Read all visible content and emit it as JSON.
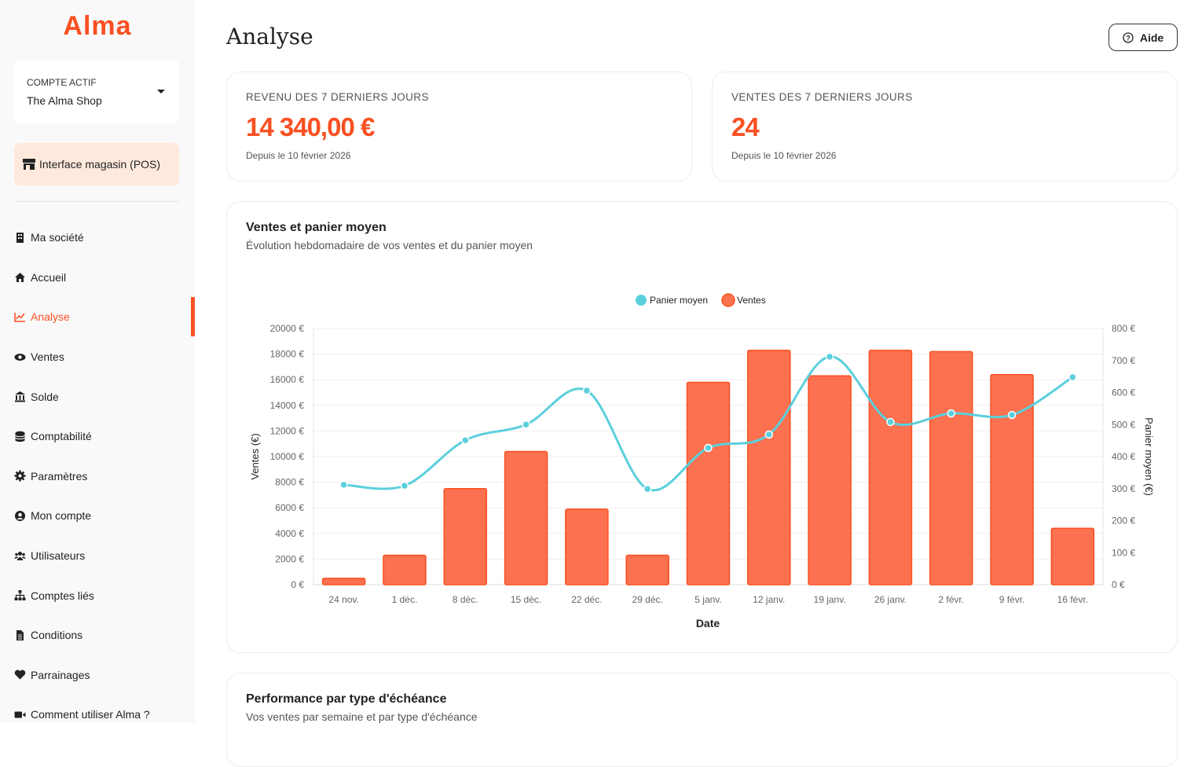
{
  "brand": "Alma",
  "account": {
    "label": "COMPTE ACTIF",
    "value": "The Alma Shop"
  },
  "pos_button": "Interface magasin (POS)",
  "nav": [
    {
      "label": "Ma société",
      "icon": "building-icon"
    },
    {
      "label": "Accueil",
      "icon": "home-icon"
    },
    {
      "label": "Analyse",
      "icon": "chart-line-icon",
      "active": true
    },
    {
      "label": "Ventes",
      "icon": "eye-icon"
    },
    {
      "label": "Solde",
      "icon": "bank-icon"
    },
    {
      "label": "Comptabilité",
      "icon": "database-icon"
    },
    {
      "label": "Paramètres",
      "icon": "gear-icon"
    },
    {
      "label": "Mon compte",
      "icon": "user-circle-icon"
    },
    {
      "label": "Utilisateurs",
      "icon": "users-icon"
    },
    {
      "label": "Comptes liés",
      "icon": "sitemap-icon"
    },
    {
      "label": "Conditions",
      "icon": "document-icon"
    },
    {
      "label": "Parrainages",
      "icon": "heart-icon"
    },
    {
      "label": "Comment utiliser Alma ?",
      "icon": "video-icon"
    }
  ],
  "page_title": "Analyse",
  "help_label": "Aide",
  "kpis": [
    {
      "title": "REVENU DES 7 DERNIERS JOURS",
      "value": "14 340,00 €",
      "sub": "Depuis le 10 février 2026"
    },
    {
      "title": "VENTES DES 7 DERNIERS JOURS",
      "value": "24",
      "sub": "Depuis le 10 février 2026"
    }
  ],
  "chart_card": {
    "title": "Ventes et panier moyen",
    "subtitle": "Évolution hebdomadaire de vos ventes et du panier moyen"
  },
  "perf_card": {
    "title": "Performance par type d'échéance",
    "subtitle": "Vos ventes par semaine et par type d'échéance"
  },
  "colors": {
    "accent": "#fa5022",
    "bar": "#fc7150",
    "line": "#5bcfdc"
  },
  "chart_data": {
    "type": "bar",
    "xlabel": "Date",
    "ylabel": "Ventes (€)",
    "y2label": "Panier moyen (€)",
    "legend": [
      "Panier moyen",
      "Ventes"
    ],
    "legend_position": "top-center",
    "categories": [
      "24 nov.",
      "1 déc.",
      "8 déc.",
      "15 déc.",
      "22 déc.",
      "29 déc.",
      "5 janv.",
      "12 janv.",
      "19 janv.",
      "26 janv.",
      "2 févr.",
      "9 févr.",
      "16 févr."
    ],
    "series": [
      {
        "name": "Ventes",
        "type": "bar",
        "axis": "left",
        "values": [
          500,
          2300,
          7500,
          10400,
          5900,
          2300,
          15800,
          18300,
          16300,
          18300,
          18200,
          16400,
          4400
        ]
      },
      {
        "name": "Panier moyen",
        "type": "line",
        "axis": "right",
        "values": [
          312,
          309,
          451,
          500,
          606,
          299,
          427,
          469,
          712,
          508,
          535,
          530,
          648
        ]
      }
    ],
    "ylim": [
      0,
      20000
    ],
    "y2lim": [
      0,
      800
    ],
    "yticks": [
      "0 €",
      "2000 €",
      "4000 €",
      "6000 €",
      "8000 €",
      "10000 €",
      "12000 €",
      "14000 €",
      "16000 €",
      "18000 €",
      "20000 €"
    ],
    "y2ticks": [
      "0 €",
      "100 €",
      "200 €",
      "300 €",
      "400 €",
      "500 €",
      "600 €",
      "700 €",
      "800 €"
    ]
  }
}
